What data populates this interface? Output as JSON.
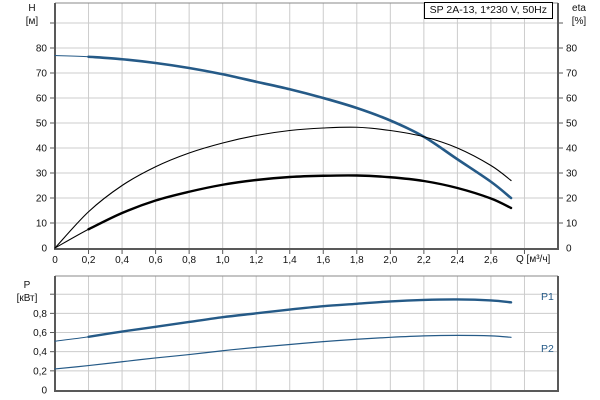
{
  "colors": {
    "curve_blue": "#255a87",
    "curve_black": "#000000",
    "grid": "#cccccc",
    "axis": "#595959",
    "chart_border_top": "#8a8a8a",
    "text": "#111111"
  },
  "chart_data": [
    {
      "name": "head-and-efficiency-chart",
      "type": "line",
      "title": "SP 2A-13, 1*230 V, 50Hz",
      "xlabel": "Q [м³/ч]",
      "ylabel_left": [
        "H",
        "[м]"
      ],
      "ylabel_right": [
        "eta",
        "[%]"
      ],
      "x_range": [
        0,
        3.0
      ],
      "y_range": [
        0,
        98
      ],
      "x_tick_step": 0.2,
      "y_tick_step": 10,
      "grid": true,
      "legend_position": "none",
      "x_tick_labels": [
        "0",
        "0,2",
        "0,4",
        "0,6",
        "0,8",
        "1,0",
        "1,2",
        "1,4",
        "1,6",
        "1,8",
        "2,0",
        "2,2",
        "2,4",
        "2,6"
      ],
      "y_tick_labels_left": [
        "0",
        "10",
        "20",
        "30",
        "40",
        "50",
        "60",
        "70",
        "80"
      ],
      "y_tick_labels_right": [
        "0",
        "10",
        "20",
        "30",
        "40",
        "50",
        "60",
        "70",
        "80"
      ],
      "series": [
        {
          "name": "H",
          "color": "#255a87",
          "width": 2.6,
          "thin_width": 1,
          "thick_from": 0.2,
          "x": [
            0,
            0.2,
            0.4,
            0.6,
            0.8,
            1.0,
            1.2,
            1.4,
            1.6,
            1.8,
            2.0,
            2.2,
            2.4,
            2.6,
            2.72
          ],
          "y": [
            77,
            76.5,
            75.5,
            74,
            72,
            69.5,
            66.5,
            63.5,
            60,
            56,
            51,
            44.5,
            35.5,
            26.5,
            20
          ]
        },
        {
          "name": "eta-upper",
          "color": "#000000",
          "width": 1.1,
          "thin_width": 1.1,
          "thick_from": null,
          "x": [
            0,
            0.2,
            0.4,
            0.6,
            0.8,
            1.0,
            1.2,
            1.4,
            1.6,
            1.8,
            2.0,
            2.2,
            2.4,
            2.6,
            2.72
          ],
          "y": [
            0,
            14.5,
            25,
            32.5,
            38,
            42,
            45,
            47,
            48,
            48.3,
            47,
            44.5,
            40,
            33,
            27
          ]
        },
        {
          "name": "eta-lower",
          "color": "#000000",
          "width": 2.4,
          "thin_width": 1,
          "thick_from": 0.2,
          "x": [
            0,
            0.2,
            0.4,
            0.6,
            0.8,
            1.0,
            1.2,
            1.4,
            1.6,
            1.8,
            2.0,
            2.2,
            2.4,
            2.6,
            2.72
          ],
          "y": [
            0,
            7.5,
            14,
            19,
            22.5,
            25.3,
            27.2,
            28.4,
            28.9,
            29,
            28.3,
            26.8,
            24,
            19.8,
            16
          ]
        }
      ]
    },
    {
      "name": "power-chart",
      "type": "line",
      "title": "",
      "xlabel": "",
      "ylabel_left": [
        "P",
        "[кВт]"
      ],
      "x_range": [
        0,
        3.0
      ],
      "y_range": [
        0,
        1.19
      ],
      "x_tick_step": 0.2,
      "y_tick_step": 0.2,
      "grid": true,
      "legend_position": "right",
      "x_tick_labels": [],
      "y_tick_labels_left": [
        "0",
        "0,2",
        "0,4",
        "0,6",
        "0,8"
      ],
      "y_tick_labels_right": [],
      "series": [
        {
          "name": "P1",
          "color": "#255a87",
          "width": 2.4,
          "thin_width": 1,
          "thick_from": 0.2,
          "x": [
            0,
            0.2,
            0.4,
            0.6,
            0.8,
            1.0,
            1.2,
            1.4,
            1.6,
            1.8,
            2.0,
            2.2,
            2.4,
            2.6,
            2.72
          ],
          "y": [
            0.51,
            0.555,
            0.61,
            0.66,
            0.71,
            0.76,
            0.8,
            0.84,
            0.875,
            0.9,
            0.925,
            0.94,
            0.945,
            0.935,
            0.915
          ]
        },
        {
          "name": "P2",
          "color": "#255a87",
          "width": 1.2,
          "thin_width": 1.2,
          "thick_from": null,
          "x": [
            0,
            0.2,
            0.4,
            0.6,
            0.8,
            1.0,
            1.2,
            1.4,
            1.6,
            1.8,
            2.0,
            2.2,
            2.4,
            2.6,
            2.72
          ],
          "y": [
            0.22,
            0.255,
            0.295,
            0.335,
            0.37,
            0.41,
            0.445,
            0.475,
            0.505,
            0.53,
            0.55,
            0.565,
            0.57,
            0.565,
            0.55
          ]
        }
      ]
    }
  ]
}
